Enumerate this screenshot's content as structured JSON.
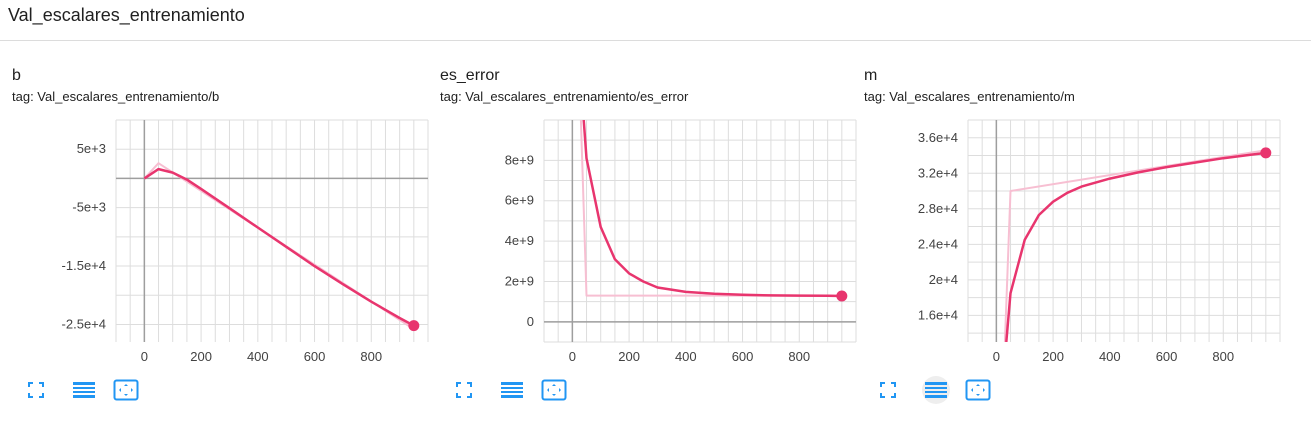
{
  "page": {
    "title": "Val_escalares_entrenamiento"
  },
  "colors": {
    "line": "#e8356e",
    "raw": "#f7bfd2",
    "grid": "#dddddd",
    "axis": "#9e9e9e",
    "icon": "#2196f3"
  },
  "cards": [
    {
      "title": "b",
      "tag": "tag: Val_escalares_entrenamiento/b"
    },
    {
      "title": "es_error",
      "tag": "tag: Val_escalares_entrenamiento/es_error"
    },
    {
      "title": "m",
      "tag": "tag: Val_escalares_entrenamiento/m"
    }
  ],
  "toolbar": {
    "fullscreen_icon": "fullscreen-icon",
    "log_scale_icon": "list-lines-icon",
    "fit_domain_icon": "fit-domain-icon"
  },
  "chart_data": [
    {
      "type": "line",
      "title": "",
      "xlim": [
        -100,
        1000
      ],
      "ylim": [
        -28000,
        10000
      ],
      "x_ticks": [
        0,
        200,
        400,
        600,
        800
      ],
      "x_tick_labels": [
        "0",
        "200",
        "400",
        "600",
        "800"
      ],
      "y_ticks": [
        5000,
        -5000,
        -15000,
        -25000
      ],
      "y_tick_labels": [
        "5e+3",
        "-5e+3",
        "-1.5e+4",
        "-2.5e+4"
      ],
      "grid": true,
      "series": [
        {
          "style": "raw",
          "x": [
            0,
            50,
            950
          ],
          "y": [
            0,
            2600,
            -25800
          ]
        },
        {
          "style": "smoothed",
          "x": [
            0,
            50,
            100,
            150,
            200,
            300,
            400,
            500,
            600,
            700,
            800,
            900,
            950
          ],
          "y": [
            0,
            1600,
            1000,
            -200,
            -1800,
            -5100,
            -8400,
            -11700,
            -15000,
            -18100,
            -21100,
            -23900,
            -25200
          ]
        }
      ]
    },
    {
      "type": "line",
      "title": "",
      "xlim": [
        -100,
        1000
      ],
      "ylim": [
        -1000000000,
        10000000000
      ],
      "x_ticks": [
        0,
        200,
        400,
        600,
        800
      ],
      "x_tick_labels": [
        "0",
        "200",
        "400",
        "600",
        "800"
      ],
      "y_ticks": [
        8000000000,
        6000000000,
        4000000000,
        2000000000,
        0
      ],
      "y_tick_labels": [
        "8e+9",
        "6e+9",
        "4e+9",
        "2e+9",
        "0"
      ],
      "grid": true,
      "series": [
        {
          "style": "raw",
          "x": [
            30,
            50,
            950
          ],
          "y": [
            10000000000,
            1300000000,
            1300000000
          ]
        },
        {
          "style": "smoothed",
          "x": [
            40,
            50,
            100,
            150,
            200,
            250,
            300,
            400,
            500,
            600,
            700,
            800,
            900,
            950
          ],
          "y": [
            10000000000,
            8100000000,
            4700000000,
            3100000000,
            2400000000,
            2000000000,
            1700000000,
            1480000000,
            1390000000,
            1340000000,
            1310000000,
            1300000000,
            1290000000,
            1280000000
          ]
        }
      ]
    },
    {
      "type": "line",
      "title": "",
      "xlim": [
        -100,
        1000
      ],
      "ylim": [
        13000,
        38000
      ],
      "x_ticks": [
        0,
        200,
        400,
        600,
        800
      ],
      "x_tick_labels": [
        "0",
        "200",
        "400",
        "600",
        "800"
      ],
      "y_ticks": [
        36000,
        32000,
        28000,
        24000,
        20000,
        16000
      ],
      "y_tick_labels": [
        "3.6e+4",
        "3.2e+4",
        "2.8e+4",
        "2.4e+4",
        "2e+4",
        "1.6e+4"
      ],
      "grid": true,
      "series": [
        {
          "style": "raw",
          "x": [
            30,
            50,
            950
          ],
          "y": [
            13000,
            30000,
            34600
          ]
        },
        {
          "style": "smoothed",
          "x": [
            35,
            50,
            100,
            150,
            200,
            250,
            300,
            400,
            500,
            600,
            700,
            800,
            900,
            950
          ],
          "y": [
            13000,
            18500,
            24500,
            27300,
            28800,
            29800,
            30500,
            31400,
            32100,
            32700,
            33200,
            33700,
            34100,
            34300
          ]
        }
      ]
    }
  ]
}
